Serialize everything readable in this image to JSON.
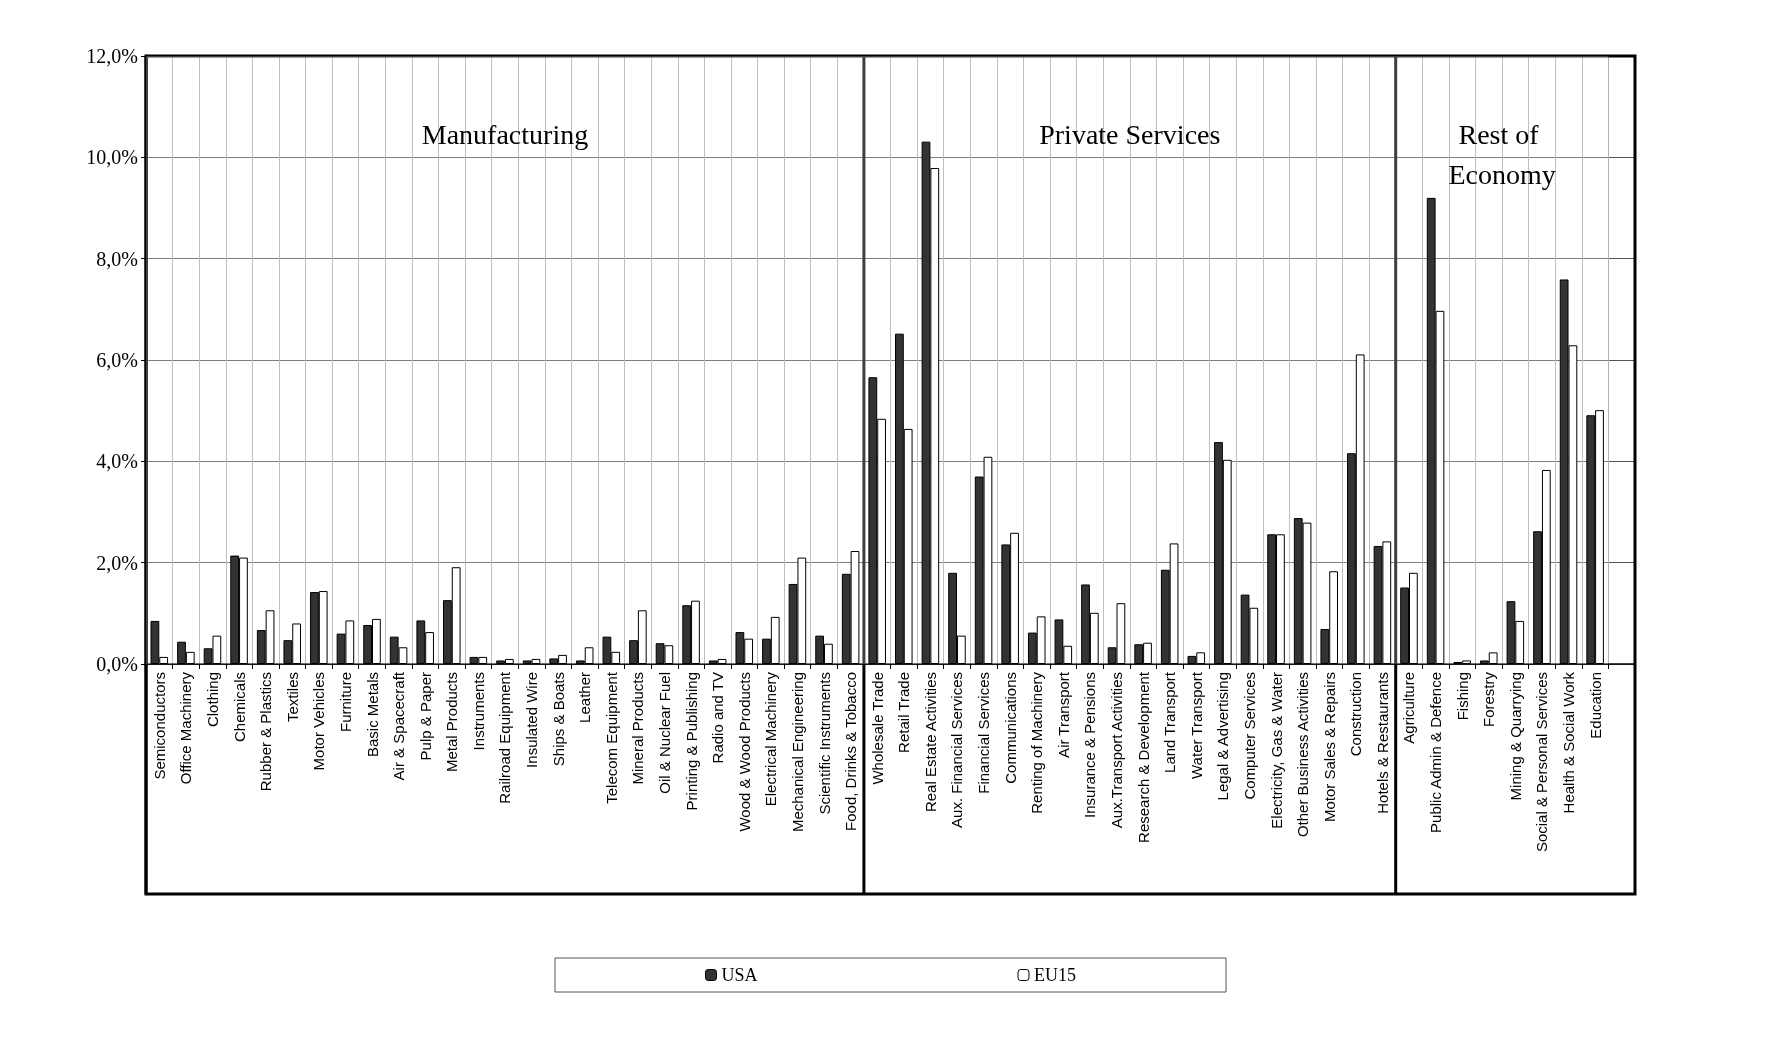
{
  "chart_data": {
    "type": "bar",
    "categories": [
      "Semiconductors",
      "Office Machinery",
      "Clothing",
      "Chemicals",
      "Rubber & Plastics",
      "Textiles",
      "Motor Vehicles",
      "Furniture",
      "Basic Metals",
      "Air & Spacecraft",
      "Pulp & Paper",
      "Metal Products",
      "Instruments",
      "Railroad Equipment",
      "Insulated Wire",
      "Ships & Boats",
      "Leather",
      "Telecom Equipment",
      "Mineral Products",
      "Oil & Nuclear Fuel",
      "Printing & Publishing",
      "Radio and TV",
      "Wood & Wood Products",
      "Electrical Machinery",
      "Mechanical Engineering",
      "Scientific Instruments",
      "Food, Drinks & Tobacco",
      "Wholesale Trade",
      "Retail Trade",
      "Real Estate Activities",
      "Aux. Financial Services",
      "Financial Services",
      "Communications",
      "Renting of Machinery",
      "Air Transport",
      "Insurance & Pensions",
      "Aux.Transport Activities",
      "Research & Development",
      "Land Transport",
      "Water Transport",
      "Legal & Advertising",
      "Computer Services",
      "Electricity, Gas & Water",
      "Other Business Activities",
      "Motor Sales & Repairs",
      "Construction",
      "Hotels & Restaurants",
      "Agriculture",
      "Public Admin & Defence",
      "Fishing",
      "Forestry",
      "Mining & Quarrying",
      "Social & Personal Services",
      "Health & Social Work",
      "Education",
      null
    ],
    "series": [
      {
        "name": "USA",
        "color": "#333333",
        "values": [
          0.85,
          0.44,
          0.31,
          2.14,
          0.67,
          0.47,
          1.42,
          0.6,
          0.77,
          0.54,
          0.86,
          1.26,
          0.14,
          0.07,
          0.07,
          0.11,
          0.07,
          0.54,
          0.47,
          0.41,
          1.16,
          0.07,
          0.63,
          0.5,
          1.58,
          0.56,
          1.78,
          5.66,
          6.52,
          10.31,
          1.8,
          3.7,
          2.36,
          0.62,
          0.88,
          1.57,
          0.33,
          0.39,
          1.86,
          0.16,
          4.38,
          1.37,
          2.56,
          2.88,
          0.69,
          4.16,
          2.33,
          1.51,
          9.2,
          0.04,
          0.07,
          1.24,
          2.62,
          7.59,
          4.91,
          null
        ]
      },
      {
        "name": "EU15",
        "color": "#ffffff",
        "values": [
          0.14,
          0.24,
          0.56,
          2.1,
          1.06,
          0.8,
          1.44,
          0.86,
          0.89,
          0.33,
          0.63,
          1.91,
          0.14,
          0.1,
          0.1,
          0.18,
          0.33,
          0.24,
          1.06,
          0.37,
          1.25,
          0.1,
          0.5,
          0.93,
          2.1,
          0.4,
          2.23,
          4.84,
          4.64,
          9.79,
          0.56,
          4.09,
          2.59,
          0.94,
          0.36,
          1.01,
          1.2,
          0.42,
          2.38,
          0.23,
          4.03,
          1.11,
          2.56,
          2.79,
          1.83,
          6.11,
          2.42,
          1.8,
          6.97,
          0.07,
          0.23,
          0.85,
          3.83,
          6.29,
          5.01,
          null
        ]
      }
    ],
    "ylim": [
      0,
      12
    ],
    "yticks": [
      {
        "value": 0,
        "label": "0,0%"
      },
      {
        "value": 2,
        "label": "2,0%"
      },
      {
        "value": 4,
        "label": "4,0%"
      },
      {
        "value": 6,
        "label": "6,0%"
      },
      {
        "value": 8,
        "label": "8,0%"
      },
      {
        "value": 10,
        "label": "10,0%"
      },
      {
        "value": 12,
        "label": "12,0%"
      }
    ],
    "grid": true,
    "legend": "bottom",
    "bands": [
      {
        "axis": "x",
        "from": "Semiconductors",
        "to": "Food, Drinks & Tobacco",
        "label": "Manufacturing",
        "color": "#ffffff"
      },
      {
        "axis": "x",
        "from": "Wholesale Trade",
        "to": "Hotels & Restaurants",
        "label": "Private Services",
        "color": "#ffffff"
      },
      {
        "axis": "x",
        "from": "Agriculture",
        "to": "Education",
        "label": "Rest of Economy",
        "color": "#ffffff"
      }
    ]
  }
}
